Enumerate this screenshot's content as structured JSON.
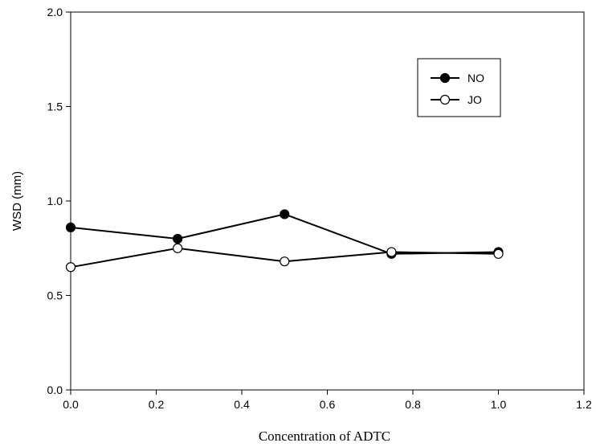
{
  "chart_data": {
    "type": "line",
    "xlabel": "Concentration of ADTC",
    "ylabel": "WSD (mm)",
    "xlim": [
      0.0,
      1.2
    ],
    "ylim": [
      0.0,
      2.0
    ],
    "x_ticks": [
      "0.0",
      "0.2",
      "0.4",
      "0.6",
      "0.8",
      "1.0",
      "1.2"
    ],
    "y_ticks": [
      "0.0",
      "0.5",
      "1.0",
      "1.5",
      "2.0"
    ],
    "grid": false,
    "legend_position": "top-right",
    "series": [
      {
        "name": "NO",
        "marker": "filled-circle",
        "color": "#000000",
        "x": [
          0.0,
          0.25,
          0.5,
          0.75,
          1.0
        ],
        "y": [
          0.86,
          0.8,
          0.93,
          0.72,
          0.73
        ]
      },
      {
        "name": "JO",
        "marker": "open-circle",
        "color": "#000000",
        "x": [
          0.0,
          0.25,
          0.5,
          0.75,
          1.0
        ],
        "y": [
          0.65,
          0.75,
          0.68,
          0.73,
          0.72
        ]
      }
    ]
  }
}
